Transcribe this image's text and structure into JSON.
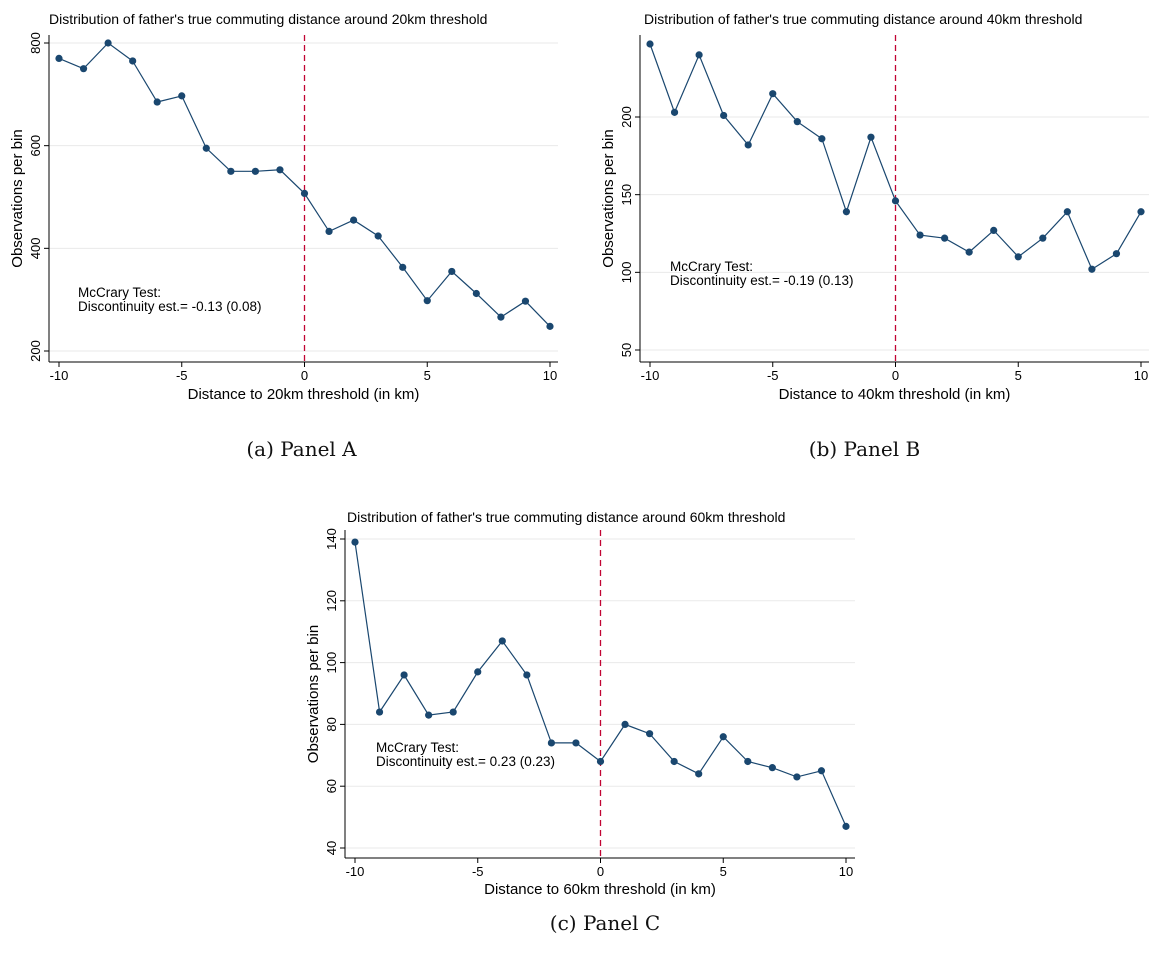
{
  "captions": [
    "(a) Panel A",
    "(b) Panel B",
    "(c) Panel C"
  ],
  "colors": {
    "series": "#1a476f",
    "threshold": "#c10534",
    "grid": "#eaeaea",
    "axis": "#000000"
  },
  "chart_data": [
    {
      "type": "line",
      "title": "Distribution of father's true commuting distance around 20km threshold",
      "xlabel": "Distance to 20km threshold (in km)",
      "ylabel": "Observations per bin",
      "x": [
        -10,
        -9,
        -8,
        -7,
        -6,
        -5,
        -4,
        -3,
        -2,
        -1,
        0,
        1,
        2,
        3,
        4,
        5,
        6,
        7,
        8,
        9,
        10
      ],
      "values": [
        770,
        750,
        800,
        765,
        685,
        697,
        595,
        550,
        550,
        553,
        507,
        433,
        455,
        424,
        363,
        298,
        355,
        312,
        266,
        297,
        248
      ],
      "xlim": [
        -10,
        10
      ],
      "ylim": [
        200,
        800
      ],
      "xticks": [
        -10,
        -5,
        0,
        5,
        10
      ],
      "yticks": [
        200,
        400,
        600,
        800
      ],
      "threshold_x": 0,
      "grid": true,
      "annotation": [
        "McCrary Test:",
        "Discontinuity est.= -0.13 (0.08)"
      ]
    },
    {
      "type": "line",
      "title": "Distribution of father's true commuting distance around 40km threshold",
      "xlabel": "Distance to 40km threshold (in km)",
      "ylabel": "Observations per bin",
      "x": [
        -10,
        -9,
        -8,
        -7,
        -6,
        -5,
        -4,
        -3,
        -2,
        -1,
        0,
        1,
        2,
        3,
        4,
        5,
        6,
        7,
        8,
        9,
        10
      ],
      "values": [
        247,
        203,
        240,
        201,
        182,
        215,
        197,
        186,
        139,
        187,
        146,
        124,
        122,
        113,
        127,
        110,
        122,
        139,
        102,
        112,
        139
      ],
      "xlim": [
        -10,
        10
      ],
      "ylim": [
        50,
        200
      ],
      "xticks": [
        -10,
        -5,
        0,
        5,
        10
      ],
      "yticks": [
        50,
        100,
        150,
        200
      ],
      "threshold_x": 0,
      "grid": true,
      "annotation": [
        "McCrary Test:",
        "Discontinuity est.= -0.19 (0.13)"
      ]
    },
    {
      "type": "line",
      "title": "Distribution of father's true commuting distance around 60km threshold",
      "xlabel": "Distance to 60km threshold (in km)",
      "ylabel": "Observations per bin",
      "x": [
        -10,
        -9,
        -8,
        -7,
        -6,
        -5,
        -4,
        -3,
        -2,
        -1,
        0,
        1,
        2,
        3,
        4,
        5,
        6,
        7,
        8,
        9,
        10
      ],
      "values": [
        139,
        84,
        96,
        83,
        84,
        97,
        107,
        96,
        74,
        74,
        68,
        80,
        77,
        68,
        64,
        76,
        68,
        66,
        63,
        65,
        47
      ],
      "xlim": [
        -10,
        10
      ],
      "ylim": [
        40,
        140
      ],
      "xticks": [
        -10,
        -5,
        0,
        5,
        10
      ],
      "yticks": [
        40,
        60,
        80,
        100,
        120,
        140
      ],
      "threshold_x": 0,
      "grid": true,
      "annotation": [
        "McCrary Test:",
        "Discontinuity est.= 0.23 (0.23)"
      ]
    }
  ]
}
